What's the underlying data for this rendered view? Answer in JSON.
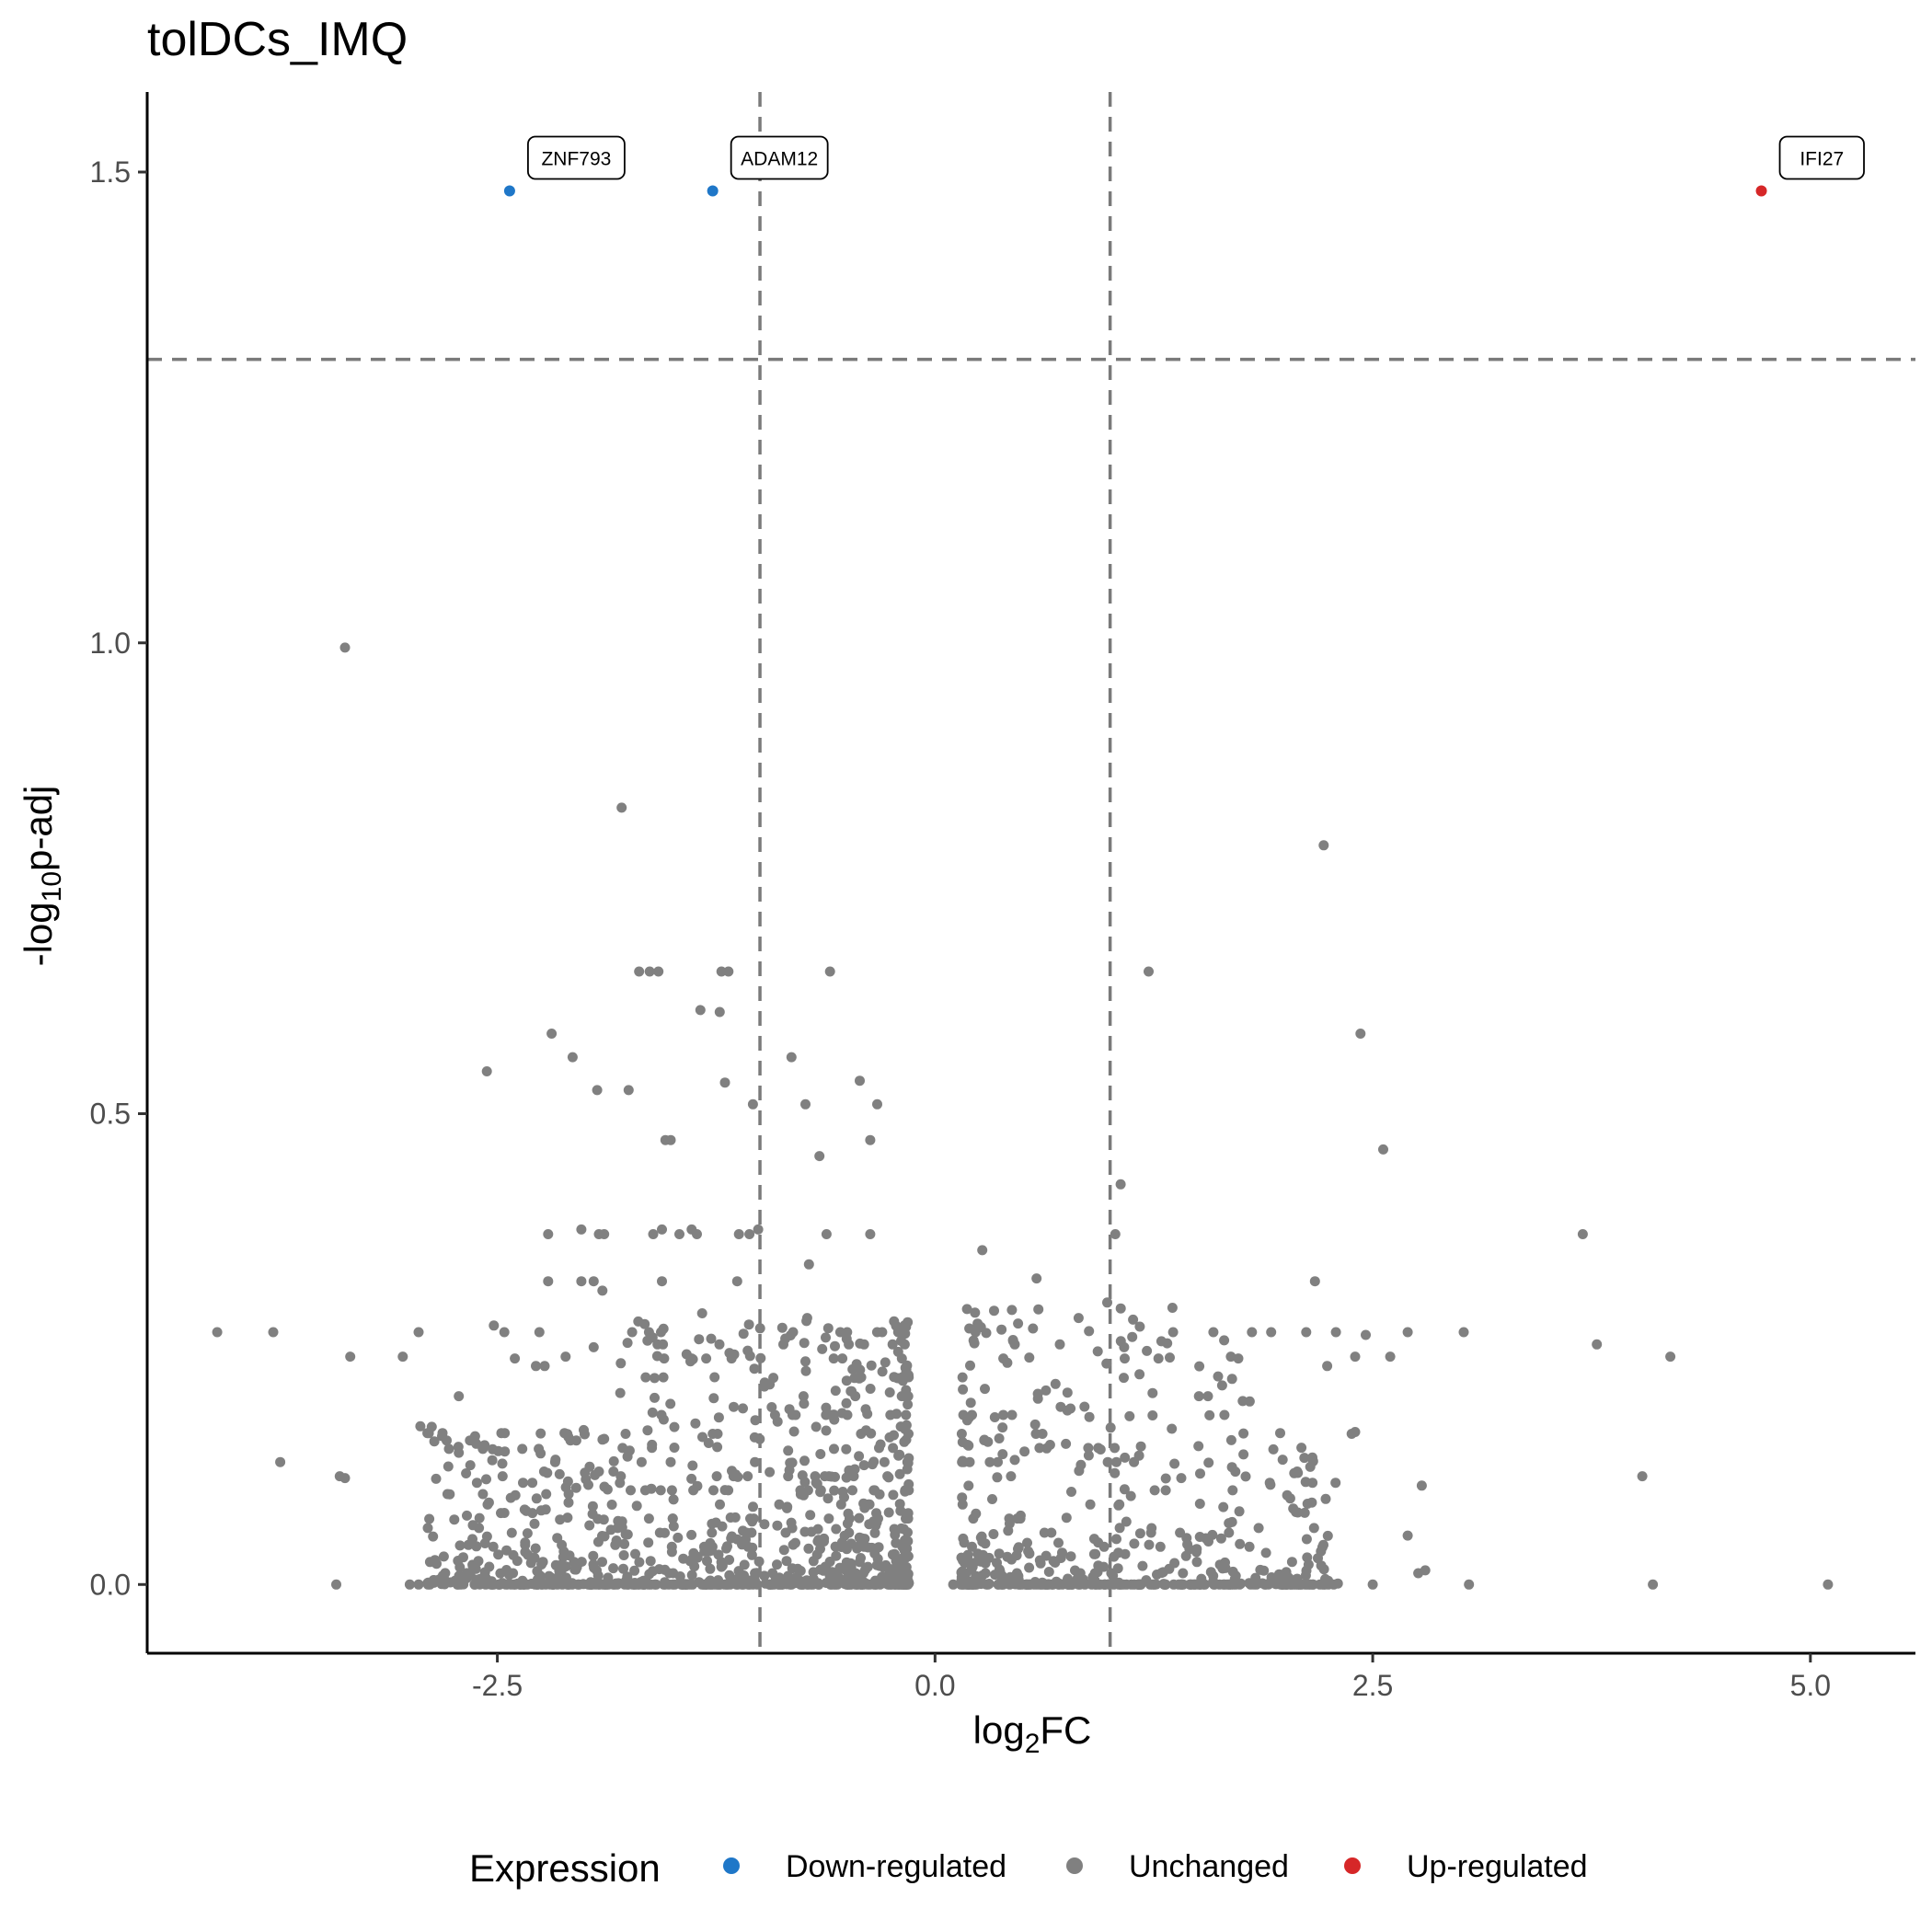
{
  "chart_data": {
    "type": "scatter",
    "title": "tolDCs_IMQ",
    "xlabel_main": "log",
    "xlabel_sub": "2",
    "xlabel_tail": "FC",
    "ylabel_main": "-log",
    "ylabel_sub": "10",
    "ylabel_tail": "p-adj",
    "xlim": [
      -4.5,
      5.6
    ],
    "ylim": [
      -0.073,
      1.585
    ],
    "x_ticks": [
      {
        "value": -2.5,
        "label": "-2.5"
      },
      {
        "value": 0,
        "label": "0.0"
      },
      {
        "value": 2.5,
        "label": "2.5"
      },
      {
        "value": 5,
        "label": "5.0"
      }
    ],
    "y_ticks": [
      {
        "value": 0,
        "label": "0.0"
      },
      {
        "value": 0.5,
        "label": "0.5"
      },
      {
        "value": 1,
        "label": "1.0"
      },
      {
        "value": 1.5,
        "label": "1.5"
      }
    ],
    "vlines": [
      -1,
      1
    ],
    "hline": 1.301,
    "colors": {
      "down": "#1f77c8",
      "unchanged": "#808080",
      "up": "#d62728"
    },
    "legend": {
      "title": "Expression",
      "position": "bottom",
      "items": [
        {
          "key": "down",
          "label": "Down-regulated"
        },
        {
          "key": "unchanged",
          "label": "Unchanged"
        },
        {
          "key": "up",
          "label": "Up-regulated"
        }
      ]
    },
    "labeled_points": [
      {
        "x": -2.43,
        "y": 1.48,
        "group": "down",
        "label": "ZNF793"
      },
      {
        "x": -1.27,
        "y": 1.48,
        "group": "down",
        "label": "ADAM12"
      },
      {
        "x": 4.72,
        "y": 1.48,
        "group": "up",
        "label": "IFI27"
      }
    ],
    "points": [
      [
        -3.37,
        0.995
      ],
      [
        -1.79,
        0.825
      ],
      [
        2.22,
        0.785
      ],
      [
        -1.69,
        0.651
      ],
      [
        -1.63,
        0.651
      ],
      [
        -1.58,
        0.651
      ],
      [
        -1.22,
        0.651
      ],
      [
        -1.18,
        0.651
      ],
      [
        -0.6,
        0.651
      ],
      [
        1.22,
        0.651
      ],
      [
        -1.34,
        0.61
      ],
      [
        -1.23,
        0.608
      ],
      [
        -2.19,
        0.585
      ],
      [
        2.43,
        0.585
      ],
      [
        -2.07,
        0.56
      ],
      [
        -0.82,
        0.56
      ],
      [
        -2.56,
        0.545
      ],
      [
        -0.43,
        0.535
      ],
      [
        -1.2,
        0.533
      ],
      [
        -1.93,
        0.525
      ],
      [
        -1.75,
        0.525
      ],
      [
        -1.04,
        0.51
      ],
      [
        -0.74,
        0.51
      ],
      [
        -0.33,
        0.51
      ],
      [
        -1.54,
        0.472
      ],
      [
        -1.51,
        0.472
      ],
      [
        -0.37,
        0.472
      ],
      [
        2.56,
        0.462
      ],
      [
        -0.66,
        0.455
      ],
      [
        1.06,
        0.425
      ],
      [
        -2.21,
        0.372
      ],
      [
        -2.02,
        0.377
      ],
      [
        -1.92,
        0.372
      ],
      [
        -1.89,
        0.372
      ],
      [
        -1.61,
        0.372
      ],
      [
        -1.56,
        0.377
      ],
      [
        -1.46,
        0.372
      ],
      [
        -1.39,
        0.377
      ],
      [
        -1.36,
        0.372
      ],
      [
        -1.12,
        0.372
      ],
      [
        -1.06,
        0.372
      ],
      [
        -1.01,
        0.377
      ],
      [
        -0.62,
        0.372
      ],
      [
        -0.37,
        0.372
      ],
      [
        1.03,
        0.372
      ],
      [
        3.7,
        0.372
      ],
      [
        0.27,
        0.355
      ],
      [
        -0.72,
        0.34
      ],
      [
        -2.21,
        0.322
      ],
      [
        -2.02,
        0.322
      ],
      [
        -1.95,
        0.322
      ],
      [
        -1.9,
        0.312
      ],
      [
        -1.56,
        0.322
      ],
      [
        -1.13,
        0.322
      ],
      [
        0.58,
        0.325
      ],
      [
        2.17,
        0.322
      ],
      [
        -1.33,
        0.288
      ],
      [
        -0.73,
        0.283
      ],
      [
        0.82,
        0.283
      ],
      [
        -4.1,
        0.268
      ],
      [
        -3.78,
        0.268
      ],
      [
        -2.95,
        0.268
      ],
      [
        -2.52,
        0.275
      ],
      [
        -2.46,
        0.268
      ],
      [
        -2.26,
        0.268
      ],
      [
        -1.73,
        0.268
      ],
      [
        1.36,
        0.268
      ],
      [
        1.59,
        0.268
      ],
      [
        1.81,
        0.268
      ],
      [
        1.92,
        0.268
      ],
      [
        2.12,
        0.268
      ],
      [
        2.29,
        0.268
      ],
      [
        2.46,
        0.265
      ],
      [
        2.7,
        0.268
      ],
      [
        3.02,
        0.268
      ],
      [
        3.78,
        0.255
      ],
      [
        -3.34,
        0.242
      ],
      [
        -3.04,
        0.242
      ],
      [
        2.4,
        0.242
      ],
      [
        2.6,
        0.242
      ],
      [
        4.2,
        0.242
      ],
      [
        -2.4,
        0.24
      ],
      [
        -2.28,
        0.232
      ],
      [
        -2.23,
        0.232
      ],
      [
        -2.11,
        0.242
      ],
      [
        -1.95,
        0.252
      ],
      [
        1.08,
        0.252
      ],
      [
        1.21,
        0.248
      ],
      [
        1.69,
        0.242
      ],
      [
        2.24,
        0.232
      ],
      [
        -3.74,
        0.13
      ],
      [
        -3.4,
        0.115
      ],
      [
        -3.37,
        0.113
      ],
      [
        -2.94,
        0.168
      ],
      [
        -2.86,
        0.152
      ],
      [
        -2.72,
        0.2
      ],
      [
        -2.47,
        0.115
      ],
      [
        -2.17,
        0.13
      ],
      [
        2.4,
        0.162
      ],
      [
        2.38,
        0.16
      ],
      [
        4.04,
        0.115
      ],
      [
        2.78,
        0.105
      ],
      [
        -3.42,
        0.0
      ],
      [
        -3.0,
        0.0
      ],
      [
        -2.95,
        0.0
      ],
      [
        3.05,
        0.0
      ],
      [
        4.1,
        0.0
      ],
      [
        5.1,
        0.0
      ],
      [
        2.5,
        0.0
      ],
      [
        2.76,
        0.012
      ],
      [
        2.8,
        0.015
      ],
      [
        2.7,
        0.052
      ]
    ],
    "dense_regions": [
      {
        "x_min": -2.9,
        "x_max": 0.0,
        "y_max": 0.28,
        "count": 900,
        "seed": 11
      },
      {
        "x_min": 0.1,
        "x_max": 2.3,
        "y_max": 0.3,
        "count": 450,
        "seed": 29
      },
      {
        "x_min": -2.7,
        "x_max": 2.3,
        "y_max": 0.0,
        "count": 0,
        "seed": 0
      }
    ]
  }
}
